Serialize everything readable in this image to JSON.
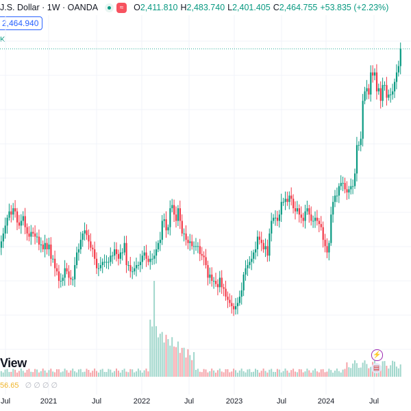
{
  "header": {
    "symbol": "J.S. Dollar · 1W · OANDA",
    "market_badge": "≈",
    "ohlc": [
      {
        "k": "O",
        "v": "2,411.810"
      },
      {
        "k": "H",
        "v": "2,483.740"
      },
      {
        "k": "L",
        "v": "2,401.405"
      },
      {
        "k": "C",
        "v": "2,464.755"
      },
      {
        "k": "",
        "v": "+53.835 (+2.23%)"
      }
    ]
  },
  "price_box": "2,464.940",
  "x_marker": "K",
  "watermark": "View",
  "volume_readout": {
    "value": "56.65",
    "extras": "∅ ∅ ∅ ∅"
  },
  "colors": {
    "up": "#089981",
    "down": "#f23645",
    "upVol": "#9fd6cb",
    "downVol": "#f5a3a8",
    "grid": "#f0f3fa",
    "priceLine": "#22ab94"
  },
  "event_icons": [
    "lightning-icon",
    "us-flag-icon"
  ],
  "chart_data": {
    "type": "candlestick",
    "xTicks": [
      "Jul",
      "2021",
      "Jul",
      "2022",
      "Jul",
      "2023",
      "Jul",
      "2024",
      "Jul"
    ],
    "last_close": 2464.755,
    "closes": [
      1820,
      1835,
      1855,
      1880,
      1905,
      1930,
      1950,
      1940,
      1960,
      1950,
      1915,
      1905,
      1920,
      1935,
      1900,
      1880,
      1870,
      1885,
      1880,
      1870,
      1870,
      1845,
      1845,
      1830,
      1850,
      1830,
      1845,
      1800,
      1800,
      1770,
      1760,
      1730,
      1730,
      1740,
      1770,
      1760,
      1740,
      1735,
      1735,
      1780,
      1820,
      1830,
      1860,
      1880,
      1890,
      1875,
      1855,
      1835,
      1830,
      1800,
      1770,
      1770,
      1780,
      1790,
      1790,
      1790,
      1790,
      1810,
      1810,
      1830,
      1815,
      1800,
      1820,
      1820,
      1850,
      1780,
      1780,
      1760,
      1760,
      1770,
      1780,
      1780,
      1790,
      1810,
      1820,
      1800,
      1790,
      1800,
      1800,
      1810,
      1830,
      1850,
      1860,
      1920,
      1925,
      1890,
      1900,
      1960,
      1970,
      1940,
      1920,
      1960,
      1920,
      1880,
      1880,
      1860,
      1850,
      1855,
      1840,
      1840,
      1840,
      1840,
      1815,
      1810,
      1805,
      1780,
      1740,
      1750,
      1730,
      1730,
      1720,
      1710,
      1740,
      1710,
      1705,
      1680,
      1670,
      1660,
      1650,
      1640,
      1650,
      1660,
      1680,
      1700,
      1750,
      1770,
      1780,
      1790,
      1800,
      1820,
      1830,
      1870,
      1860,
      1850,
      1830,
      1840,
      1810,
      1880,
      1920,
      1930,
      1930,
      1920,
      1940,
      1980,
      1980,
      1990,
      1980,
      2000,
      1990,
      1960,
      1950,
      1960,
      1940,
      1930,
      1920,
      1950,
      1960,
      1940,
      1920,
      1920,
      1930,
      1920,
      1910,
      1900,
      1860,
      1840,
      1820,
      1850,
      1940,
      1980,
      2000,
      2000,
      2030,
      2040,
      2040,
      2020,
      2010,
      2020,
      2030,
      2030,
      2070,
      2160,
      2160,
      2180,
      2300,
      2330,
      2340,
      2320,
      2390,
      2380,
      2390,
      2330,
      2340,
      2300,
      2350,
      2350,
      2310,
      2320,
      2320,
      2330,
      2360,
      2390,
      2410,
      2464.755
    ]
  }
}
